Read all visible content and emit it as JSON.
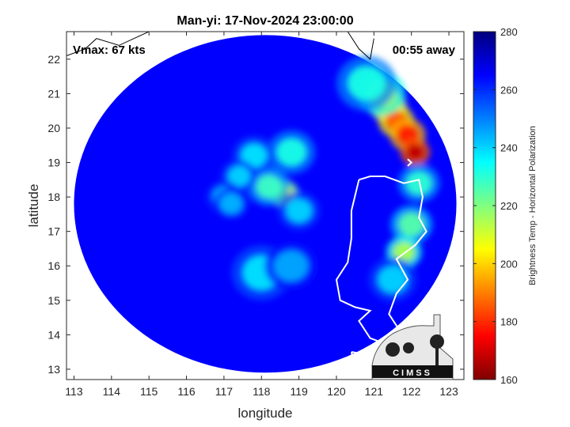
{
  "chart_data": {
    "type": "heatmap",
    "title": "Man-yi: 17-Nov-2024 23:00:00",
    "xlabel": "longitude",
    "ylabel": "latitude",
    "xlim": [
      112.8,
      123.4
    ],
    "ylim": [
      12.7,
      22.8
    ],
    "x_ticks": [
      113,
      114,
      115,
      116,
      117,
      118,
      119,
      120,
      121,
      122,
      123
    ],
    "y_ticks": [
      13,
      14,
      15,
      16,
      17,
      18,
      19,
      20,
      21,
      22
    ],
    "grid": false,
    "colorbar": {
      "label": "Brightness Temp - Horizontal Polarization",
      "range": [
        160,
        280
      ],
      "ticks": [
        160,
        180,
        200,
        220,
        240,
        260,
        280
      ],
      "colormap": "jet"
    },
    "annotations": {
      "vmax": "Vmax: 67 kts",
      "time_away": "00:55 away",
      "logo_text": "CIMSS"
    },
    "swath": {
      "center_lon": 118.1,
      "center_lat": 17.8,
      "radius_lon": 5.1,
      "radius_lat": 4.9,
      "background_temp": 265
    },
    "features": [
      {
        "lon": 118.6,
        "lat": 18.1,
        "temp": 205,
        "spread": 0.25
      },
      {
        "lon": 118.2,
        "lat": 18.3,
        "temp": 228,
        "spread": 0.35
      },
      {
        "lon": 118.8,
        "lat": 19.3,
        "temp": 232,
        "spread": 0.4
      },
      {
        "lon": 117.8,
        "lat": 19.2,
        "temp": 238,
        "spread": 0.35
      },
      {
        "lon": 117.4,
        "lat": 18.6,
        "temp": 240,
        "spread": 0.3
      },
      {
        "lon": 117.0,
        "lat": 18.0,
        "temp": 242,
        "spread": 0.3
      },
      {
        "lon": 119.0,
        "lat": 17.6,
        "temp": 240,
        "spread": 0.35
      },
      {
        "lon": 118.0,
        "lat": 15.8,
        "temp": 238,
        "spread": 0.5
      },
      {
        "lon": 118.8,
        "lat": 16.0,
        "temp": 245,
        "spread": 0.45
      },
      {
        "lon": 117.2,
        "lat": 17.8,
        "temp": 244,
        "spread": 0.3
      },
      {
        "lon": 121.4,
        "lat": 20.6,
        "temp": 195,
        "spread": 0.3
      },
      {
        "lon": 121.6,
        "lat": 20.2,
        "temp": 185,
        "spread": 0.3
      },
      {
        "lon": 121.9,
        "lat": 19.8,
        "temp": 178,
        "spread": 0.3
      },
      {
        "lon": 122.1,
        "lat": 19.3,
        "temp": 168,
        "spread": 0.25
      },
      {
        "lon": 121.2,
        "lat": 21.0,
        "temp": 215,
        "spread": 0.4
      },
      {
        "lon": 120.8,
        "lat": 21.3,
        "temp": 232,
        "spread": 0.5
      },
      {
        "lon": 122.0,
        "lat": 17.2,
        "temp": 225,
        "spread": 0.35
      },
      {
        "lon": 121.8,
        "lat": 16.4,
        "temp": 215,
        "spread": 0.3
      },
      {
        "lon": 122.2,
        "lat": 18.4,
        "temp": 230,
        "spread": 0.35
      },
      {
        "lon": 121.5,
        "lat": 15.6,
        "temp": 240,
        "spread": 0.4
      }
    ]
  }
}
